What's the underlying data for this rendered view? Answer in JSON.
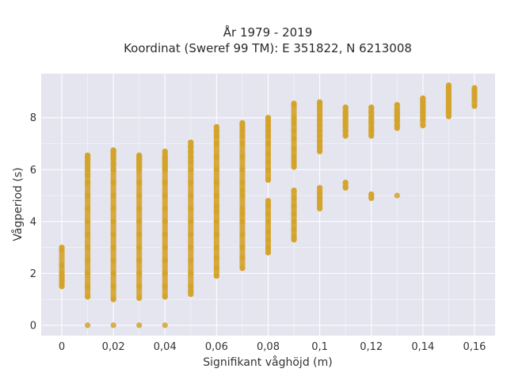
{
  "chart_data": {
    "type": "scatter",
    "title": "År 1979 - 2019",
    "subtitle": "Koordinat (Sweref 99 TM): E 351822, N 6213008",
    "xlabel": "Signifikant våghöjd (m)",
    "ylabel": "Vågperiod (s)",
    "xlim": [
      -0.008,
      0.168
    ],
    "ylim": [
      -0.4,
      9.7
    ],
    "x_ticks": [
      {
        "value": 0,
        "label": "0"
      },
      {
        "value": 0.02,
        "label": "0,02"
      },
      {
        "value": 0.04,
        "label": "0,04"
      },
      {
        "value": 0.06,
        "label": "0,06"
      },
      {
        "value": 0.08,
        "label": "0,08"
      },
      {
        "value": 0.1,
        "label": "0,1"
      },
      {
        "value": 0.12,
        "label": "0,12"
      },
      {
        "value": 0.14,
        "label": "0,14"
      },
      {
        "value": 0.16,
        "label": "0,16"
      }
    ],
    "y_ticks": [
      {
        "value": 0,
        "label": "0"
      },
      {
        "value": 2,
        "label": "2"
      },
      {
        "value": 4,
        "label": "4"
      },
      {
        "value": 6,
        "label": "6"
      },
      {
        "value": 8,
        "label": "8"
      }
    ],
    "grid": true,
    "legend": "none",
    "colors": {
      "marker": "#d4a32a",
      "plot_bg": "#e5e5f0",
      "grid": "#ffffff"
    },
    "series": [
      {
        "x": [
          0,
          0,
          0,
          0,
          0,
          0,
          0,
          0,
          0,
          0.01,
          0.01,
          0.01,
          0.01,
          0.01,
          0.01,
          0.01,
          0.01,
          0.01,
          0.01,
          0.01,
          0.01,
          0.01,
          0.01,
          0.01,
          0.01,
          0.01,
          0.01,
          0.02,
          0.02,
          0.02,
          0.02,
          0.02,
          0.02,
          0.02,
          0.02,
          0.02,
          0.02,
          0.02,
          0.02,
          0.02,
          0.02,
          0.02,
          0.02,
          0.02,
          0.02,
          0.03,
          0.03,
          0.03,
          0.03,
          0.03,
          0.03,
          0.03,
          0.03,
          0.03,
          0.03,
          0.03,
          0.03,
          0.03,
          0.03,
          0.03,
          0.03,
          0.03,
          0.03,
          0.04,
          0.04,
          0.04,
          0.04,
          0.04,
          0.04,
          0.04,
          0.04,
          0.04,
          0.04,
          0.04,
          0.04,
          0.04,
          0.04,
          0.04,
          0.04,
          0.04,
          0.04,
          0.05,
          0.05,
          0.05,
          0.05,
          0.05,
          0.05,
          0.05,
          0.05,
          0.05,
          0.05,
          0.05,
          0.05,
          0.05,
          0.05,
          0.05,
          0.05,
          0.05,
          0.06,
          0.06,
          0.06,
          0.06,
          0.06,
          0.06,
          0.06,
          0.06,
          0.06,
          0.06,
          0.06,
          0.06,
          0.06,
          0.06,
          0.06,
          0.06,
          0.07,
          0.07,
          0.07,
          0.07,
          0.07,
          0.07,
          0.07,
          0.07,
          0.07,
          0.07,
          0.07,
          0.07,
          0.07,
          0.07,
          0.07,
          0.07,
          0.07,
          0.08,
          0.08,
          0.08,
          0.08,
          0.08,
          0.08,
          0.08,
          0.08,
          0.08,
          0.08,
          0.08,
          0.08,
          0.08,
          0.08,
          0.08,
          0.08,
          0.08,
          0.08,
          0.09,
          0.09,
          0.09,
          0.09,
          0.09,
          0.09,
          0.09,
          0.09,
          0.09,
          0.09,
          0.09,
          0.09,
          0.09,
          0.09,
          0.09,
          0.09,
          0.09,
          0.09,
          0.1,
          0.1,
          0.1,
          0.1,
          0.1,
          0.1,
          0.1,
          0.1,
          0.1,
          0.1,
          0.1,
          0.1,
          0.1,
          0.1,
          0.1,
          0.1,
          0.11,
          0.11,
          0.11,
          0.11,
          0.11,
          0.11,
          0.11,
          0.11,
          0.11,
          0.11,
          0.11,
          0.12,
          0.12,
          0.12,
          0.12,
          0.12,
          0.12,
          0.12,
          0.12,
          0.12,
          0.12,
          0.13,
          0.13,
          0.13,
          0.13,
          0.13,
          0.13,
          0.13,
          0.13,
          0.13,
          0.14,
          0.14,
          0.14,
          0.14,
          0.14,
          0.14,
          0.14,
          0.14,
          0.14,
          0.14,
          0.15,
          0.15,
          0.15,
          0.15,
          0.15,
          0.15,
          0.15,
          0.15,
          0.15,
          0.15,
          0.15,
          0.16,
          0.16,
          0.16,
          0.16,
          0.16,
          0.16
        ],
        "y": [
          1.5,
          1.6,
          1.7,
          1.8,
          1.9,
          2.0,
          2.3,
          2.9,
          3.0,
          0,
          1.1,
          1.5,
          2.0,
          2.5,
          3.0,
          3.5,
          4.0,
          4.5,
          5.0,
          5.5,
          5.8,
          6.0,
          6.2,
          6.3,
          6.4,
          6.5,
          6.55,
          0,
          1.0,
          1.5,
          2.0,
          2.5,
          3.0,
          3.5,
          4.0,
          4.5,
          5.0,
          5.5,
          6.0,
          6.2,
          6.4,
          6.5,
          6.6,
          6.7,
          6.75,
          0,
          1.05,
          1.5,
          2.0,
          2.5,
          3.0,
          3.5,
          4.0,
          4.5,
          5.0,
          5.5,
          6.0,
          6.1,
          6.2,
          6.3,
          6.4,
          6.5,
          6.55,
          0,
          1.1,
          1.5,
          2.0,
          2.5,
          3.0,
          3.5,
          4.0,
          4.5,
          5.0,
          5.5,
          6.0,
          6.1,
          6.2,
          6.3,
          6.4,
          6.5,
          6.7,
          1.2,
          1.3,
          1.5,
          2.0,
          2.5,
          3.0,
          3.5,
          4.0,
          4.5,
          5.0,
          5.5,
          6.0,
          6.3,
          6.5,
          6.7,
          6.9,
          7.05,
          1.9,
          2.2,
          2.6,
          3.0,
          3.5,
          4.0,
          4.4,
          4.6,
          5.0,
          5.5,
          6.0,
          6.5,
          7.0,
          7.3,
          7.5,
          7.65,
          2.2,
          2.6,
          3.0,
          3.5,
          4.0,
          4.3,
          4.5,
          5.0,
          5.2,
          5.5,
          6.0,
          6.5,
          7.0,
          7.3,
          7.5,
          7.7,
          7.8,
          2.8,
          3.0,
          3.3,
          3.6,
          4.0,
          4.3,
          4.6,
          4.8,
          5.6,
          6.0,
          6.3,
          6.6,
          7.0,
          7.3,
          7.5,
          7.7,
          7.9,
          8.0,
          3.3,
          3.4,
          3.7,
          4.0,
          4.3,
          4.6,
          4.9,
          5.2,
          6.1,
          6.3,
          6.5,
          6.8,
          7.2,
          7.5,
          7.8,
          8.0,
          8.5,
          8.55,
          4.5,
          4.7,
          4.9,
          5.1,
          5.3,
          6.7,
          6.9,
          7.1,
          7.3,
          7.5,
          7.7,
          7.9,
          8.1,
          8.3,
          8.5,
          8.6,
          5.3,
          5.5,
          7.3,
          7.5,
          7.7,
          7.8,
          7.9,
          8.0,
          8.1,
          8.2,
          8.4,
          4.9,
          5.05,
          7.3,
          7.5,
          7.6,
          7.8,
          7.9,
          8.0,
          8.2,
          8.4,
          5.0,
          7.6,
          7.7,
          7.9,
          8.0,
          8.1,
          8.2,
          8.3,
          8.5,
          7.7,
          7.95,
          8.05,
          8.2,
          8.3,
          8.4,
          8.5,
          8.6,
          8.7,
          8.75,
          8.05,
          8.2,
          8.3,
          8.4,
          8.5,
          8.6,
          8.7,
          8.85,
          9.0,
          9.15,
          9.25,
          8.45,
          8.7,
          8.8,
          8.95,
          9.05,
          9.15
        ]
      }
    ]
  }
}
